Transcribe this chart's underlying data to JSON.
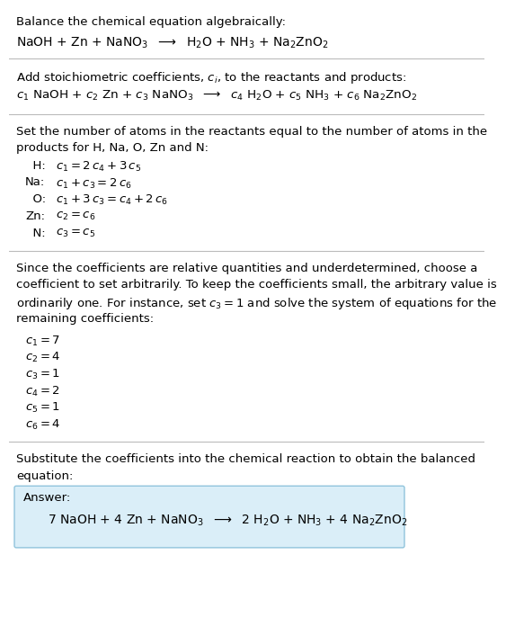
{
  "title_line": "Balance the chemical equation algebraically:",
  "eq1": "NaOH + Zn + NaNO$_3$  $\\longrightarrow$  H$_2$O + NH$_3$ + Na$_2$ZnO$_2$",
  "section2_title": "Add stoichiometric coefficients, $c_i$, to the reactants and products:",
  "eq2": "$c_1$ NaOH + $c_2$ Zn + $c_3$ NaNO$_3$  $\\longrightarrow$  $c_4$ H$_2$O + $c_5$ NH$_3$ + $c_6$ Na$_2$ZnO$_2$",
  "section3_title_line1": "Set the number of atoms in the reactants equal to the number of atoms in the",
  "section3_title_line2": "products for H, Na, O, Zn and N:",
  "equations": [
    [
      "  H:",
      "$c_1 = 2\\,c_4 + 3\\,c_5$"
    ],
    [
      "Na:",
      "$c_1 + c_3 = 2\\,c_6$"
    ],
    [
      "  O:",
      "$c_1 + 3\\,c_3 = c_4 + 2\\,c_6$"
    ],
    [
      "Zn:",
      "$c_2 = c_6$"
    ],
    [
      "  N:",
      "$c_3 = c_5$"
    ]
  ],
  "section4_line1": "Since the coefficients are relative quantities and underdetermined, choose a",
  "section4_line2": "coefficient to set arbitrarily. To keep the coefficients small, the arbitrary value is",
  "section4_line3": "ordinarily one. For instance, set $c_3 = 1$ and solve the system of equations for the",
  "section4_line4": "remaining coefficients:",
  "coefficients": [
    "$c_1 = 7$",
    "$c_2 = 4$",
    "$c_3 = 1$",
    "$c_4 = 2$",
    "$c_5 = 1$",
    "$c_6 = 4$"
  ],
  "section5_line1": "Substitute the coefficients into the chemical reaction to obtain the balanced",
  "section5_line2": "equation:",
  "answer_label": "Answer:",
  "answer_eq": "7 NaOH + 4 Zn + NaNO$_3$  $\\longrightarrow$  2 H$_2$O + NH$_3$ + 4 Na$_2$ZnO$_2$",
  "bg_color": "#ffffff",
  "answer_box_color": "#daeef8",
  "answer_box_edge": "#90c4dc",
  "text_color": "#000000",
  "sep_color": "#bbbbbb",
  "font_size": 9.5
}
